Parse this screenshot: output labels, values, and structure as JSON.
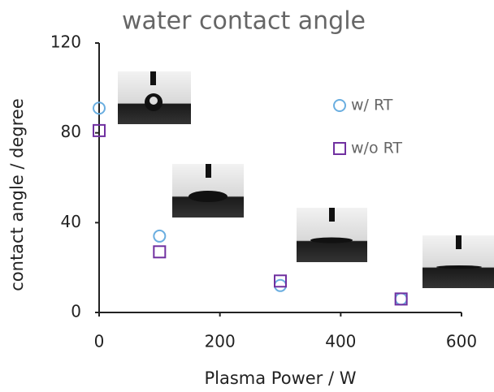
{
  "chart_data": {
    "type": "scatter",
    "title": "water contact angle",
    "xlabel": "Plasma Power / W",
    "ylabel": "contact angle / degree",
    "xlim": [
      0,
      600
    ],
    "xticks": [
      0,
      200,
      400,
      600
    ],
    "ylim": [
      0,
      120
    ],
    "yticks": [
      0,
      40,
      80,
      120
    ],
    "series": [
      {
        "name": "w/ RT",
        "color": "#6aaee0",
        "marker": "circle",
        "x": [
          0,
          100,
          300,
          500
        ],
        "values": [
          91,
          34,
          12,
          6
        ]
      },
      {
        "name": "w/o RT",
        "color": "#7030a0",
        "marker": "square",
        "x": [
          0,
          100,
          300,
          500
        ],
        "values": [
          81,
          27,
          14,
          6
        ]
      }
    ]
  }
}
